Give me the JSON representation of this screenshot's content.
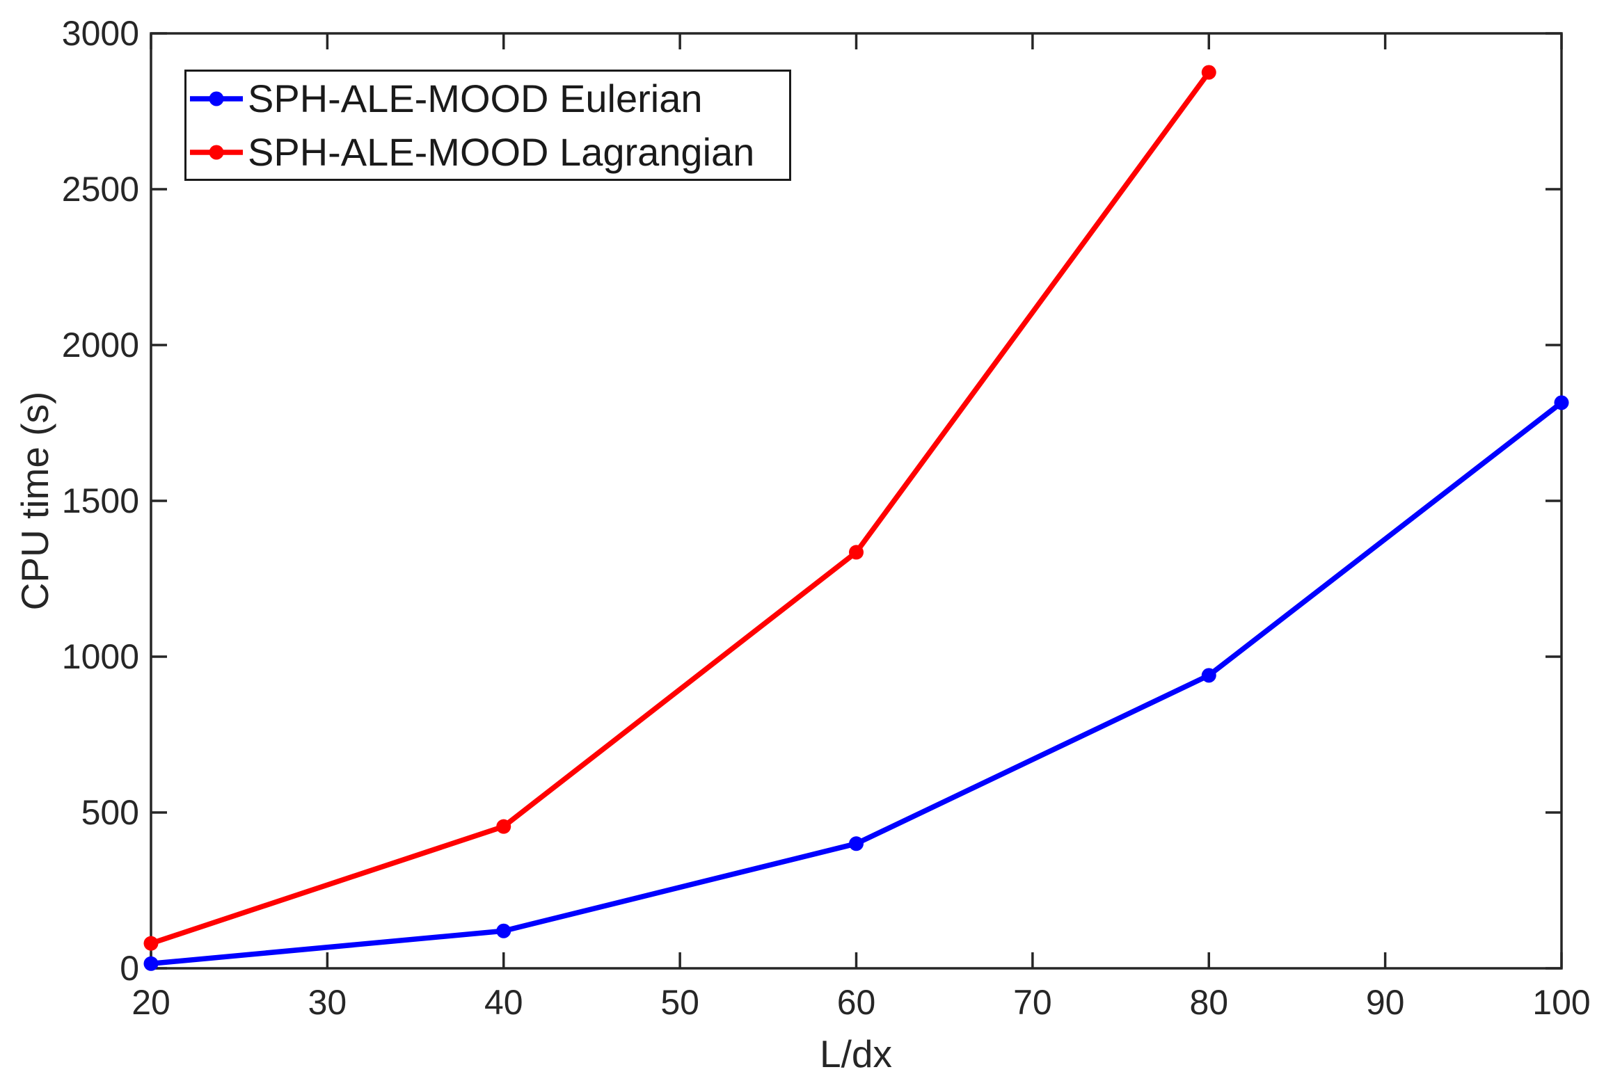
{
  "chart_data": {
    "type": "line",
    "title": "",
    "xlabel": "L/dx",
    "ylabel": "CPU time (s)",
    "xlim": [
      20,
      100
    ],
    "ylim": [
      0,
      3000
    ],
    "xticks": [
      20,
      30,
      40,
      50,
      60,
      70,
      80,
      90,
      100
    ],
    "yticks": [
      0,
      500,
      1000,
      1500,
      2000,
      2500,
      3000
    ],
    "grid": false,
    "box": true,
    "tick_direction": "in",
    "legend_position": "top-left",
    "axis_color": "#262626",
    "text_color": "#262626",
    "background_color": "#ffffff",
    "marker": "circle",
    "series": [
      {
        "name": "SPH-ALE-MOOD Eulerian",
        "color": "#0000ff",
        "x": [
          20,
          40,
          60,
          80,
          100
        ],
        "values": [
          15,
          120,
          400,
          940,
          1815
        ]
      },
      {
        "name": "SPH-ALE-MOOD Lagrangian",
        "color": "#ff0000",
        "x": [
          20,
          40,
          60,
          80
        ],
        "values": [
          80,
          455,
          1335,
          2875
        ]
      }
    ]
  }
}
